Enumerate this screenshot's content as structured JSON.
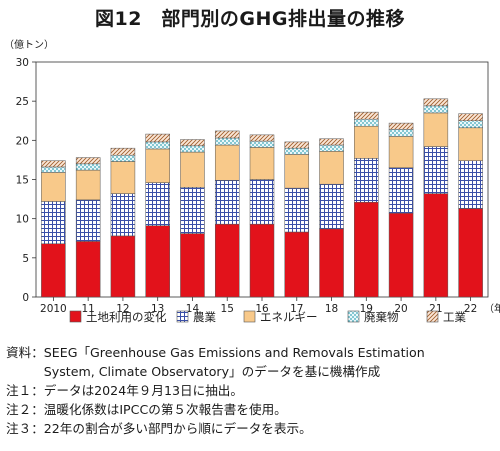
{
  "title": "図12　部門別のGHG排出量の推移",
  "chart_data": {
    "type": "bar",
    "stacked": true,
    "ylabel": "（億トン）",
    "xlabel": "（年）",
    "ylim": [
      0,
      30
    ],
    "yticks": [
      0,
      5,
      10,
      15,
      20,
      25,
      30
    ],
    "categories": [
      "2010",
      "11",
      "12",
      "13",
      "14",
      "15",
      "16",
      "17",
      "18",
      "19",
      "20",
      "21",
      "22"
    ],
    "series": [
      {
        "name": "土地利用の変化",
        "color": "#e2121b",
        "pattern": "solid",
        "values": [
          6.8,
          7.1,
          7.8,
          9.1,
          8.1,
          9.3,
          9.3,
          8.3,
          8.7,
          12.1,
          10.7,
          13.2,
          11.3
        ]
      },
      {
        "name": "農業",
        "color": "#3a4fa8",
        "pattern": "grid",
        "values": [
          5.4,
          5.3,
          5.4,
          5.5,
          5.9,
          5.6,
          5.7,
          5.6,
          5.7,
          5.6,
          5.8,
          6.0,
          6.1
        ]
      },
      {
        "name": "エネルギー",
        "color": "#f8c98a",
        "pattern": "solid",
        "values": [
          3.7,
          3.8,
          4.1,
          4.3,
          4.5,
          4.5,
          4.1,
          4.3,
          4.2,
          4.1,
          4.0,
          4.3,
          4.2
        ]
      },
      {
        "name": "廃棄物",
        "color": "#5bb7c4",
        "pattern": "dots",
        "values": [
          0.7,
          0.8,
          0.8,
          0.9,
          0.8,
          0.9,
          0.8,
          0.8,
          0.8,
          0.9,
          0.9,
          0.9,
          0.9
        ]
      },
      {
        "name": "工業",
        "color": "#a86a3d",
        "pattern": "diagonal",
        "values": [
          0.8,
          0.8,
          0.9,
          1.0,
          0.8,
          0.9,
          0.8,
          0.8,
          0.8,
          0.9,
          0.8,
          0.9,
          0.9
        ]
      }
    ],
    "legend_position": "bottom",
    "grid": false
  },
  "notes": [
    "資料：SEEG「Greenhouse Gas Emissions and Removals Estimation",
    "　　　System, Climate Observatory」のデータを基に機構作成",
    "注１：データは2024年９月13日に抽出。",
    "注２：温暖化係数はIPCCの第５次報告書を使用。",
    "注３：22年の割合が多い部門から順にデータを表示。"
  ]
}
